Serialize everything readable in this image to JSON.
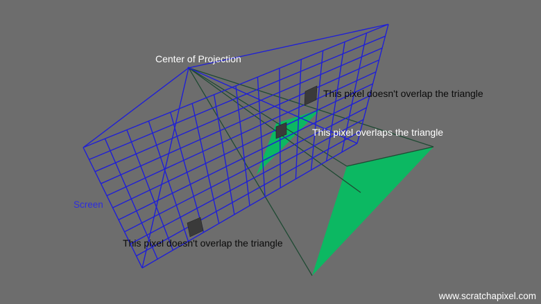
{
  "labels": {
    "center_of_projection": "Center of Projection",
    "screen": "Screen",
    "pixel_no_overlap_top": "This pixel doesn't overlap the triangle",
    "pixel_overlap": "This pixel overlaps the triangle",
    "pixel_no_overlap_bottom": "This pixel doesn't overlap the triangle",
    "watermark": "www.scratchapixel.com"
  },
  "colors": {
    "background": "#6d6d6d",
    "grid": "#1f1fd6",
    "triangle": "#0cb862",
    "rays": "#1f4a33",
    "pixel_fill": "#3a3a3a",
    "screen_label": "#2d2de0",
    "text_dark": "#0a0a0a",
    "text_light": "#ffffff"
  }
}
